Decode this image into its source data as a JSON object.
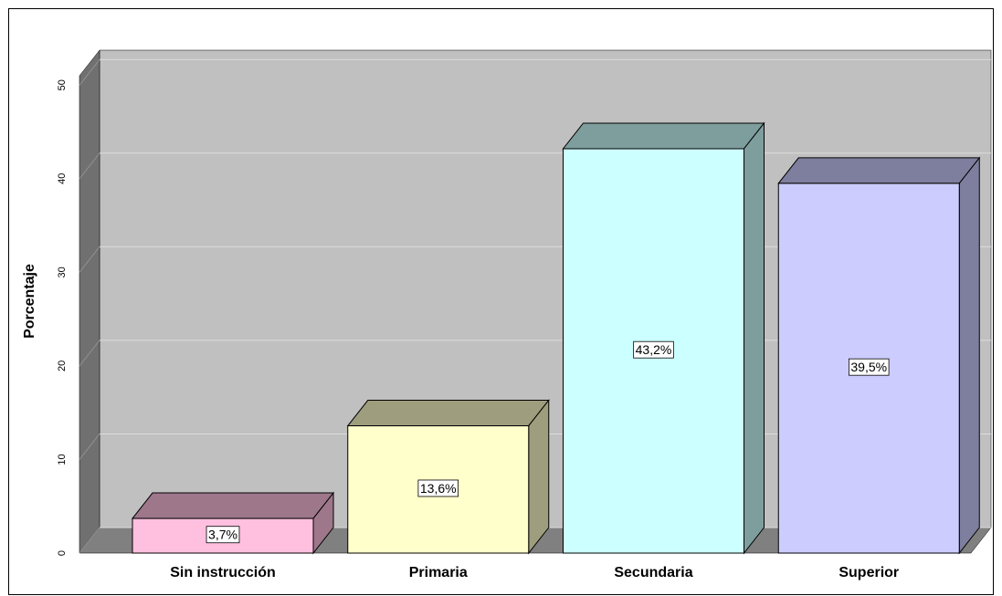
{
  "chart_data": {
    "type": "bar3d",
    "categories": [
      "Sin instrucción",
      "Primaria",
      "Secundaria",
      "Superior"
    ],
    "values": [
      3.7,
      13.6,
      43.2,
      39.5
    ],
    "value_labels": [
      "3,7%",
      "13,6%",
      "43,2%",
      "39,5%"
    ],
    "colors": [
      "#ffc0e0",
      "#ffffcc",
      "#ccffff",
      "#ccccff"
    ],
    "ylabel": "Porcentaje",
    "ylim": [
      0,
      51
    ],
    "yticks": [
      0,
      10,
      20,
      30,
      40,
      50
    ],
    "grid": true
  }
}
